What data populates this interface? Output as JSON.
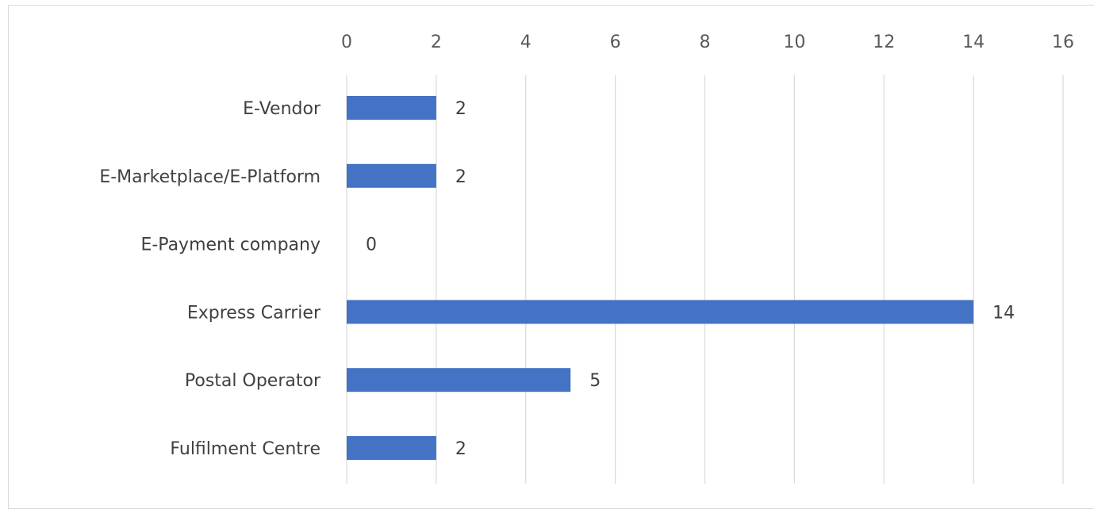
{
  "chart_data": {
    "type": "bar",
    "orientation": "horizontal",
    "categories": [
      "E-Vendor",
      "E-Marketplace/E-Platform",
      "E-Payment company",
      "Express Carrier",
      "Postal Operator",
      "Fulfilment Centre"
    ],
    "values": [
      2,
      2,
      0,
      14,
      5,
      2
    ],
    "data_labels": [
      "2",
      "2",
      "0",
      "14",
      "5",
      "2"
    ],
    "x_ticks": [
      "0",
      "2",
      "4",
      "6",
      "8",
      "10",
      "12",
      "14",
      "16"
    ],
    "xlim": [
      0,
      16
    ],
    "x_axis_position": "top",
    "grid": true,
    "legend": "none",
    "title": "",
    "xlabel": "",
    "ylabel": "",
    "bar_color": "#4472C4"
  }
}
